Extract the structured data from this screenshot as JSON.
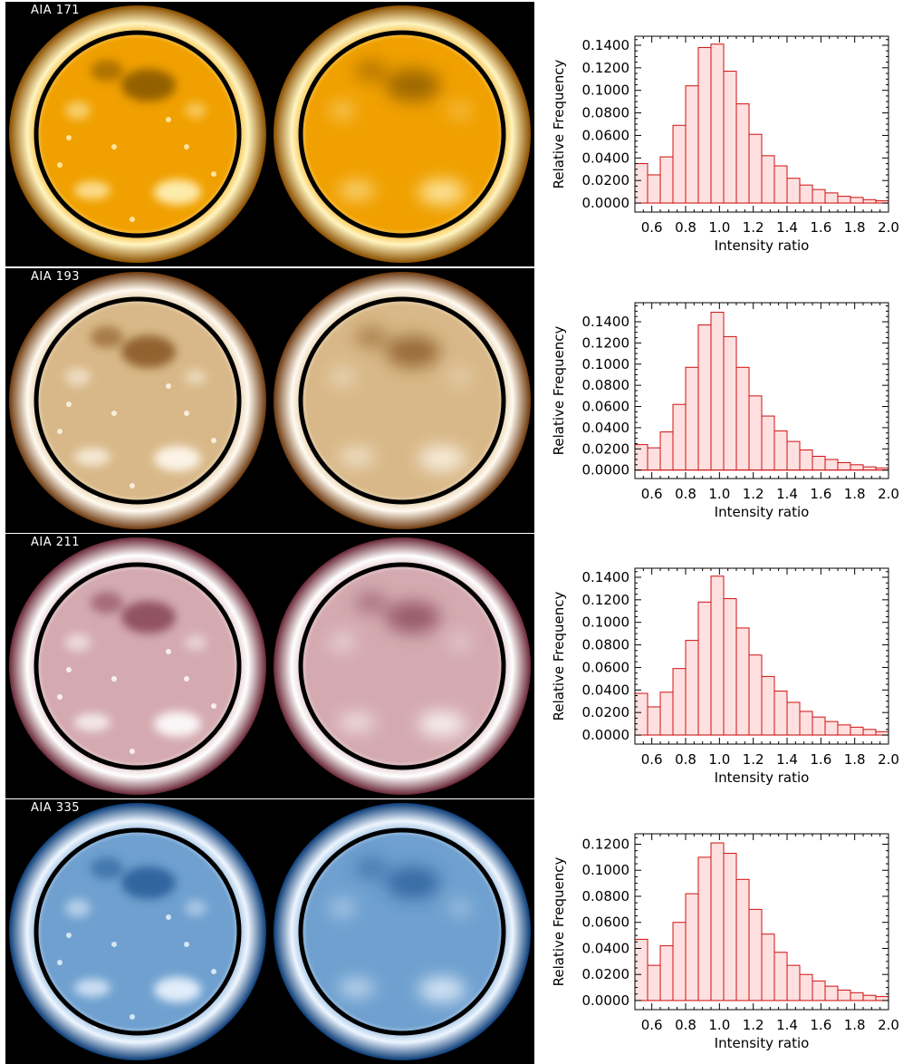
{
  "figure": {
    "rows": [
      {
        "label": "AIA 171",
        "colors": {
          "bg": "#000000",
          "limb": "#8a4f00",
          "mid": "#e08c00",
          "disk": "#f0a000",
          "bright": "#fff4c0",
          "dark": "#8a5a00"
        }
      },
      {
        "label": "AIA 193",
        "colors": {
          "bg": "#000000",
          "limb": "#6e3a10",
          "mid": "#c9955a",
          "disk": "#d8b888",
          "bright": "#fffaf0",
          "dark": "#8a5a25"
        }
      },
      {
        "label": "AIA 211",
        "colors": {
          "bg": "#000000",
          "limb": "#6a2838",
          "mid": "#c78d98",
          "disk": "#d4aab0",
          "bright": "#ffffff",
          "dark": "#8a4a5a"
        }
      },
      {
        "label": "AIA 335",
        "colors": {
          "bg": "#000000",
          "limb": "#0c3d78",
          "mid": "#3d7fc2",
          "disk": "#6fa0cf",
          "bright": "#eef6ff",
          "dark": "#2a5f9a"
        }
      }
    ]
  },
  "chart_data": [
    {
      "type": "bar",
      "xlabel": "Intensity ratio",
      "ylabel": "Relative Frequency",
      "xlim": [
        0.5,
        2.0
      ],
      "ylim": [
        -0.008,
        0.148
      ],
      "xticks": [
        "0.6",
        "0.8",
        "1.0",
        "1.2",
        "1.4",
        "1.6",
        "1.8",
        "2.0"
      ],
      "yticks": [
        "0.0000",
        "0.0200",
        "0.0400",
        "0.0600",
        "0.0800",
        "0.1000",
        "0.1200",
        "0.1400"
      ],
      "bin_width": 0.075,
      "bin_starts": [
        0.5,
        0.575,
        0.65,
        0.725,
        0.8,
        0.875,
        0.95,
        1.025,
        1.1,
        1.175,
        1.25,
        1.325,
        1.4,
        1.475,
        1.55,
        1.625,
        1.7,
        1.775,
        1.85,
        1.925
      ],
      "values": [
        0.035,
        0.025,
        0.041,
        0.069,
        0.104,
        0.138,
        0.141,
        0.117,
        0.088,
        0.061,
        0.042,
        0.033,
        0.022,
        0.016,
        0.012,
        0.009,
        0.006,
        0.005,
        0.003,
        0.002
      ],
      "bar_fill": "#ffe0e0",
      "bar_stroke": "#d01010"
    },
    {
      "type": "bar",
      "xlabel": "Intensity ratio",
      "ylabel": "Relative Frequency",
      "xlim": [
        0.5,
        2.0
      ],
      "ylim": [
        -0.008,
        0.158
      ],
      "xticks": [
        "0.6",
        "0.8",
        "1.0",
        "1.2",
        "1.4",
        "1.6",
        "1.8",
        "2.0"
      ],
      "yticks": [
        "0.0000",
        "0.0200",
        "0.0400",
        "0.0600",
        "0.0800",
        "0.1000",
        "0.1200",
        "0.1400"
      ],
      "bin_width": 0.075,
      "bin_starts": [
        0.5,
        0.575,
        0.65,
        0.725,
        0.8,
        0.875,
        0.95,
        1.025,
        1.1,
        1.175,
        1.25,
        1.325,
        1.4,
        1.475,
        1.55,
        1.625,
        1.7,
        1.775,
        1.85,
        1.925
      ],
      "values": [
        0.024,
        0.021,
        0.036,
        0.062,
        0.097,
        0.137,
        0.149,
        0.126,
        0.097,
        0.07,
        0.051,
        0.037,
        0.027,
        0.019,
        0.013,
        0.01,
        0.007,
        0.005,
        0.003,
        0.002
      ],
      "bar_fill": "#ffe0e0",
      "bar_stroke": "#d01010"
    },
    {
      "type": "bar",
      "xlabel": "Intensity ratio",
      "ylabel": "Relative Frequency",
      "xlim": [
        0.5,
        2.0
      ],
      "ylim": [
        -0.008,
        0.148
      ],
      "xticks": [
        "0.6",
        "0.8",
        "1.0",
        "1.2",
        "1.4",
        "1.6",
        "1.8",
        "2.0"
      ],
      "yticks": [
        "0.0000",
        "0.0200",
        "0.0400",
        "0.0600",
        "0.0800",
        "0.1000",
        "0.1200",
        "0.1400"
      ],
      "bin_width": 0.075,
      "bin_starts": [
        0.5,
        0.575,
        0.65,
        0.725,
        0.8,
        0.875,
        0.95,
        1.025,
        1.1,
        1.175,
        1.25,
        1.325,
        1.4,
        1.475,
        1.55,
        1.625,
        1.7,
        1.775,
        1.85,
        1.925
      ],
      "values": [
        0.037,
        0.025,
        0.038,
        0.059,
        0.084,
        0.118,
        0.141,
        0.121,
        0.095,
        0.071,
        0.052,
        0.039,
        0.029,
        0.021,
        0.016,
        0.012,
        0.009,
        0.007,
        0.005,
        0.003
      ],
      "bar_fill": "#ffe0e0",
      "bar_stroke": "#d01010"
    },
    {
      "type": "bar",
      "xlabel": "Intensity ratio",
      "ylabel": "Relative Frequency",
      "xlim": [
        0.5,
        2.0
      ],
      "ylim": [
        -0.007,
        0.128
      ],
      "xticks": [
        "0.6",
        "0.8",
        "1.0",
        "1.2",
        "1.4",
        "1.6",
        "1.8",
        "2.0"
      ],
      "yticks": [
        "0.0000",
        "0.0200",
        "0.0400",
        "0.0600",
        "0.0800",
        "0.1000",
        "0.1200"
      ],
      "bin_width": 0.075,
      "bin_starts": [
        0.5,
        0.575,
        0.65,
        0.725,
        0.8,
        0.875,
        0.95,
        1.025,
        1.1,
        1.175,
        1.25,
        1.325,
        1.4,
        1.475,
        1.55,
        1.625,
        1.7,
        1.775,
        1.85,
        1.925
      ],
      "values": [
        0.047,
        0.027,
        0.042,
        0.06,
        0.082,
        0.11,
        0.121,
        0.113,
        0.093,
        0.07,
        0.051,
        0.037,
        0.027,
        0.02,
        0.015,
        0.011,
        0.008,
        0.006,
        0.004,
        0.003
      ],
      "bar_fill": "#ffe0e0",
      "bar_stroke": "#d01010"
    }
  ]
}
